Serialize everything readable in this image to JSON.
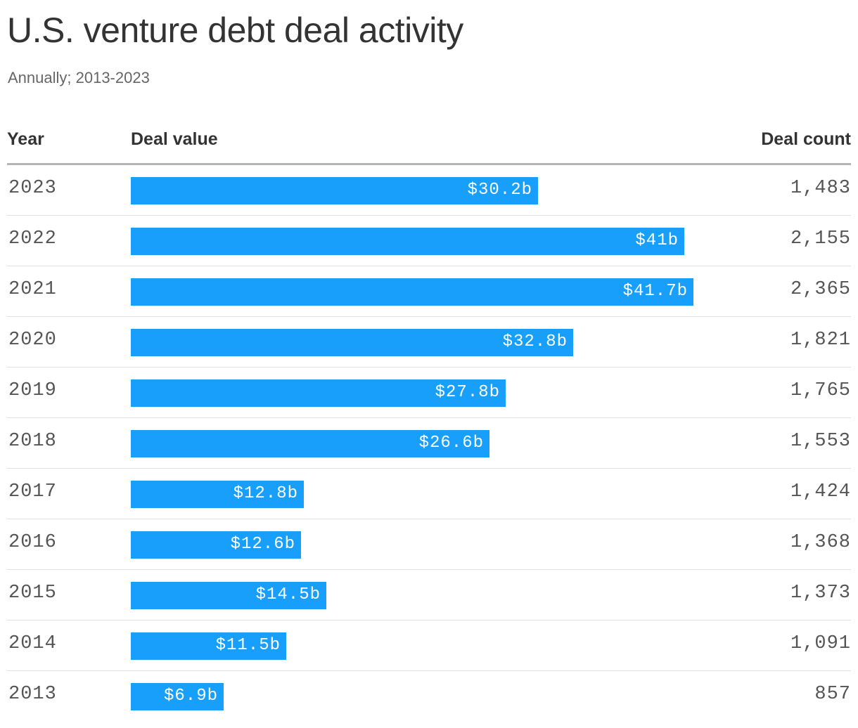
{
  "title": "U.S. venture debt deal activity",
  "subtitle": "Annually; 2013-2023",
  "columns": {
    "year": "Year",
    "value": "Deal value",
    "count": "Deal count"
  },
  "colors": {
    "bar": "#179ffb",
    "text": "#333333"
  },
  "chart_data": {
    "type": "bar",
    "title": "U.S. venture debt deal activity",
    "subtitle": "Annually; 2013-2023",
    "categories": [
      "2023",
      "2022",
      "2021",
      "2020",
      "2019",
      "2018",
      "2017",
      "2016",
      "2015",
      "2014",
      "2013"
    ],
    "series": [
      {
        "name": "Deal value",
        "values": [
          30.2,
          41,
          41.7,
          32.8,
          27.8,
          26.6,
          12.8,
          12.6,
          14.5,
          11.5,
          6.9
        ],
        "labels": [
          "$30.2b",
          "$41b",
          "$41.7b",
          "$32.8b",
          "$27.8b",
          "$26.6b",
          "$12.8b",
          "$12.6b",
          "$14.5b",
          "$11.5b",
          "$6.9b"
        ]
      },
      {
        "name": "Deal count",
        "values": [
          1483,
          2155,
          2365,
          1821,
          1765,
          1553,
          1424,
          1368,
          1373,
          1091,
          857
        ],
        "labels": [
          "1,483",
          "2,155",
          "2,365",
          "1,821",
          "1,765",
          "1,553",
          "1,424",
          "1,368",
          "1,373",
          "1,091",
          "857"
        ]
      }
    ],
    "xlim": [
      0,
      41.7
    ]
  }
}
